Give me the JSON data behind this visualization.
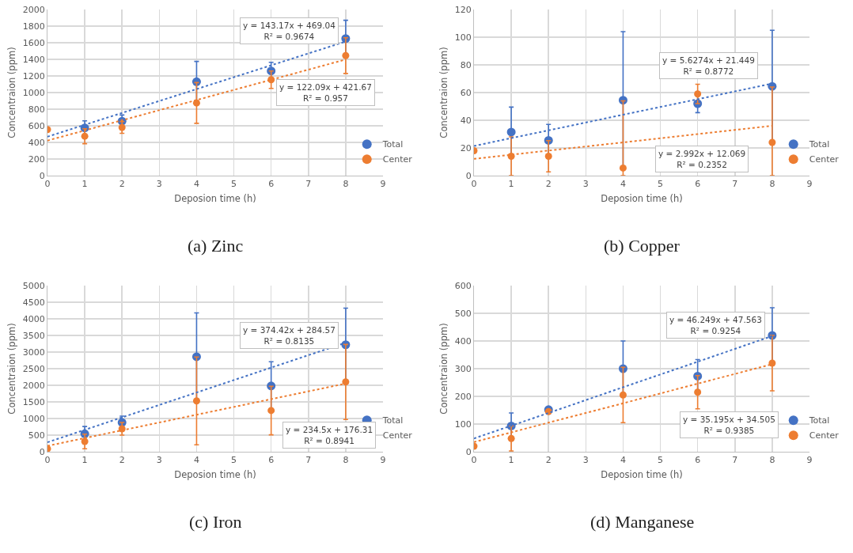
{
  "chart_data": [
    {
      "type": "scatter",
      "xlabel": "Deposion time (h)",
      "ylabel": "Concentraion (ppm)",
      "x": [
        0,
        1,
        2,
        4,
        6,
        8
      ],
      "xlim": [
        0,
        9
      ],
      "xticks": [
        0,
        1,
        2,
        3,
        4,
        5,
        6,
        7,
        8,
        9
      ],
      "ylim": [
        0,
        2000
      ],
      "yticks": [
        0,
        200,
        400,
        600,
        800,
        1000,
        1200,
        1400,
        1600,
        1800,
        2000
      ],
      "grid": true,
      "legend": "bottom right",
      "marker": "circle",
      "series": [
        {
          "name": "Total",
          "color": "#4472c4",
          "values": [
            null,
            575,
            655,
            1130,
            1260,
            1650
          ],
          "errors": [
            null,
            85,
            75,
            245,
            105,
            220
          ]
        },
        {
          "name": "Center",
          "color": "#ed7d31",
          "values": [
            555,
            475,
            580,
            875,
            1155,
            1445
          ],
          "errors": [
            null,
            90,
            70,
            245,
            105,
            215
          ]
        },
        {
          "type": "line",
          "color": "#4472c4",
          "values": [
            469,
            612,
            755,
            1042,
            1328,
            1614
          ],
          "line_style": "dotted",
          "marker": "none"
        },
        {
          "type": "line",
          "color": "#ed7d31",
          "values": [
            422,
            544,
            666,
            910,
            1154,
            1398
          ],
          "line_style": "dotted",
          "marker": "none"
        }
      ],
      "annotations": [
        "y = 143.17x + 469.04\nR² = 0.9674",
        "y = 122.09x + 421.67\nR² = 0.957",
        "(a) Zinc"
      ]
    },
    {
      "type": "scatter",
      "xlabel": "Deposion time (h)",
      "ylabel": "Concentraion (ppm)",
      "x": [
        0,
        1,
        2,
        4,
        6,
        8
      ],
      "xlim": [
        0,
        9
      ],
      "xticks": [
        0,
        1,
        2,
        3,
        4,
        5,
        6,
        7,
        8,
        9
      ],
      "ylim": [
        0,
        120
      ],
      "yticks": [
        0,
        20,
        40,
        60,
        80,
        100,
        120
      ],
      "grid": true,
      "legend": "bottom right",
      "marker": "circle",
      "series": [
        {
          "name": "Total",
          "color": "#4472c4",
          "values": [
            null,
            31.5,
            25.5,
            54.5,
            52,
            64.5
          ],
          "errors": [
            null,
            18,
            11.5,
            49.5,
            6.5,
            40.5
          ]
        },
        {
          "name": "Center",
          "color": "#ed7d31",
          "values": [
            18,
            14,
            14,
            5.5,
            59,
            24
          ],
          "errors": [
            null,
            [
              0,
              28
            ],
            11.3,
            [
              0,
              54
            ],
            7,
            [
              0,
              64
            ]
          ]
        },
        {
          "type": "line",
          "color": "#4472c4",
          "values": [
            21.4,
            27.1,
            32.7,
            44,
            55.2,
            66.5
          ],
          "line_style": "dotted",
          "marker": "none"
        },
        {
          "type": "line",
          "color": "#ed7d31",
          "values": [
            12.1,
            15.1,
            18.1,
            24,
            30,
            36
          ],
          "line_style": "dotted",
          "marker": "none"
        }
      ],
      "annotations": [
        "y = 5.6274x + 21.449\nR² = 0.8772",
        "y = 2.992x + 12.069\nR² = 0.2352",
        "(b) Copper"
      ]
    },
    {
      "type": "scatter",
      "xlabel": "Deposion time (h)",
      "ylabel": "Concentraion (ppm)",
      "x": [
        0,
        1,
        2,
        4,
        6,
        8
      ],
      "xlim": [
        0,
        9
      ],
      "xticks": [
        0,
        1,
        2,
        3,
        4,
        5,
        6,
        7,
        8,
        9
      ],
      "ylim": [
        0,
        5000
      ],
      "yticks": [
        0,
        500,
        1000,
        1500,
        2000,
        2500,
        3000,
        3500,
        4000,
        4500,
        5000
      ],
      "grid": true,
      "legend": "bottom right",
      "marker": "circle",
      "series": [
        {
          "name": "Total",
          "color": "#4472c4",
          "values": [
            null,
            540,
            880,
            2860,
            1980,
            3220
          ],
          "errors": [
            null,
            220,
            190,
            1320,
            730,
            1100
          ]
        },
        {
          "name": "Center",
          "color": "#ed7d31",
          "values": [
            90,
            310,
            690,
            1530,
            1240,
            2100
          ],
          "errors": [
            null,
            220,
            190,
            1320,
            730,
            1130
          ]
        },
        {
          "type": "line",
          "color": "#4472c4",
          "values": [
            285,
            659,
            1033,
            1782,
            2531,
            3280
          ],
          "line_style": "dotted",
          "marker": "none"
        },
        {
          "type": "line",
          "color": "#ed7d31",
          "values": [
            176,
            411,
            645,
            1114,
            1583,
            2052
          ],
          "line_style": "dotted",
          "marker": "none"
        }
      ],
      "annotations": [
        "y = 374.42x + 284.57\nR² = 0.8135",
        "y = 234.5x + 176.31\nR² = 0.8941",
        "(c) Iron"
      ]
    },
    {
      "type": "scatter",
      "xlabel": "Deposion time (h)",
      "ylabel": "Concentraion (ppm)",
      "x": [
        0,
        1,
        2,
        4,
        6,
        8
      ],
      "xlim": [
        0,
        9
      ],
      "xticks": [
        0,
        1,
        2,
        3,
        4,
        5,
        6,
        7,
        8,
        9
      ],
      "ylim": [
        0,
        600
      ],
      "yticks": [
        0,
        100,
        200,
        300,
        400,
        500,
        600
      ],
      "grid": true,
      "legend": "bottom right",
      "marker": "circle",
      "series": [
        {
          "name": "Total",
          "color": "#4472c4",
          "values": [
            null,
            93,
            152,
            300,
            273,
            420
          ],
          "errors": [
            null,
            47,
            null,
            100,
            60,
            100
          ]
        },
        {
          "name": "Center",
          "color": "#ed7d31",
          "values": [
            20,
            48,
            145,
            205,
            215,
            320
          ],
          "errors": [
            null,
            45,
            null,
            100,
            60,
            100
          ]
        },
        {
          "type": "line",
          "color": "#4472c4",
          "values": [
            48,
            94,
            140,
            233,
            325,
            418
          ],
          "line_style": "dotted",
          "marker": "none"
        },
        {
          "type": "line",
          "color": "#ed7d31",
          "values": [
            35,
            70,
            105,
            175,
            246,
            316
          ],
          "line_style": "dotted",
          "marker": "none"
        }
      ],
      "annotations": [
        "y = 46.249x + 47.563\nR² = 0.9254",
        "y = 35.195x + 34.505\nR² = 0.9385",
        "(d) Manganese"
      ]
    }
  ]
}
